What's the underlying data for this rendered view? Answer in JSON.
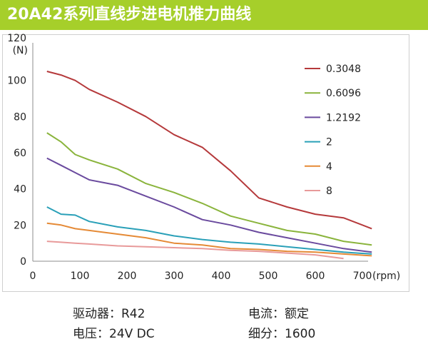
{
  "header": {
    "title": "20A42系列直线步进电机推力曲线",
    "bar_color": "#a6cf2a"
  },
  "chart_data": {
    "type": "line",
    "ylabel_top": "120",
    "yunit": "(N)",
    "xunit": "(rpm)",
    "xlim": [
      0,
      700
    ],
    "ylim": [
      0,
      120
    ],
    "xticks": [
      0,
      100,
      200,
      300,
      400,
      500,
      600,
      700
    ],
    "yticks": [
      0,
      20,
      40,
      60,
      80,
      100
    ],
    "grid": false,
    "legend_position": "right",
    "series": [
      {
        "name": "0.3048",
        "color": "#b5393b",
        "x": [
          30,
          60,
          90,
          120,
          180,
          240,
          300,
          360,
          420,
          480,
          540,
          600,
          660,
          720
        ],
        "y": [
          105,
          103,
          100,
          95,
          88,
          80,
          70,
          63,
          50,
          35,
          30,
          26,
          24,
          18
        ]
      },
      {
        "name": "0.6096",
        "color": "#8ab43c",
        "x": [
          30,
          60,
          90,
          120,
          180,
          240,
          300,
          360,
          420,
          480,
          540,
          600,
          660,
          720
        ],
        "y": [
          71,
          66,
          59,
          56,
          51,
          43,
          38,
          32,
          25,
          21,
          17,
          15,
          11,
          9
        ]
      },
      {
        "name": "1.2192",
        "color": "#6a4a9e",
        "x": [
          30,
          60,
          90,
          120,
          180,
          240,
          300,
          360,
          420,
          480,
          540,
          600,
          660,
          720
        ],
        "y": [
          57,
          53,
          49,
          45,
          42,
          36,
          30,
          23,
          20,
          16,
          13,
          10,
          7,
          5
        ]
      },
      {
        "name": "2",
        "color": "#2aa0b8",
        "x": [
          30,
          60,
          90,
          120,
          180,
          240,
          300,
          360,
          420,
          480,
          540,
          600,
          660,
          720
        ],
        "y": [
          30,
          26,
          25.5,
          22,
          19,
          17,
          14,
          12,
          10.5,
          9.5,
          8,
          6.5,
          5,
          4
        ]
      },
      {
        "name": "4",
        "color": "#e58a36",
        "x": [
          30,
          60,
          90,
          120,
          180,
          240,
          300,
          360,
          420,
          480,
          540,
          600,
          660,
          720
        ],
        "y": [
          21,
          20,
          18,
          17,
          15,
          13,
          10,
          9,
          7,
          6.5,
          5.5,
          5,
          4,
          3
        ]
      },
      {
        "name": "8",
        "color": "#e89a9a",
        "x": [
          30,
          60,
          90,
          120,
          180,
          240,
          300,
          360,
          420,
          480,
          540,
          600,
          660
        ],
        "y": [
          11,
          10.5,
          10,
          9.5,
          8.5,
          8,
          7.5,
          7,
          6,
          5.5,
          4.5,
          3.5,
          1.5
        ]
      }
    ]
  },
  "specs": {
    "driver": "驱动器：R42",
    "voltage": "电压：24V DC",
    "current": "电流：额定",
    "microstep": "细分：1600"
  }
}
